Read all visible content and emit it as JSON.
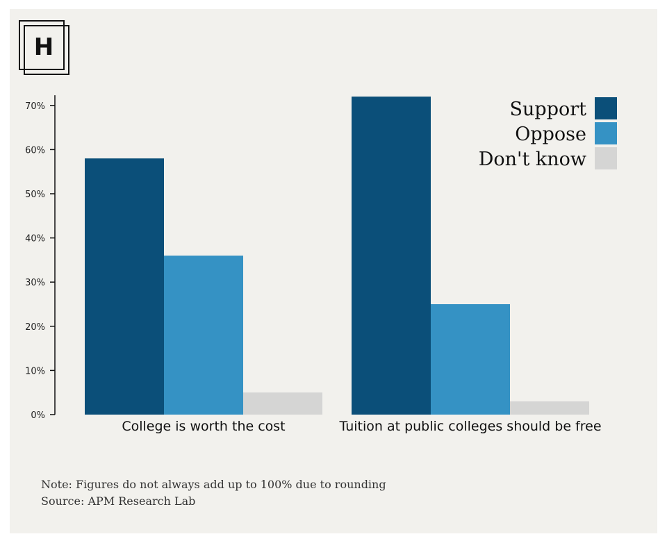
{
  "logo": {
    "letter": "H"
  },
  "chart_data": {
    "type": "bar",
    "categories": [
      "College is worth the cost",
      "Tuition at public colleges should be free"
    ],
    "series": [
      {
        "name": "Support",
        "values": [
          58,
          72
        ]
      },
      {
        "name": "Oppose",
        "values": [
          36,
          25
        ]
      },
      {
        "name": "Don't know",
        "values": [
          5,
          3
        ]
      }
    ],
    "ylim": [
      0,
      72
    ],
    "yticks": [
      0,
      10,
      20,
      30,
      40,
      50,
      60,
      70
    ],
    "ytick_suffix": "%",
    "legend_position": "top-right",
    "colors": {
      "Support": "#0b4f79",
      "Oppose": "#3592c4",
      "Don't know": "#d5d5d4"
    }
  },
  "footer": {
    "note": "Note: Figures do not always add up to 100% due to rounding",
    "source": "Source: APM Research Lab"
  }
}
